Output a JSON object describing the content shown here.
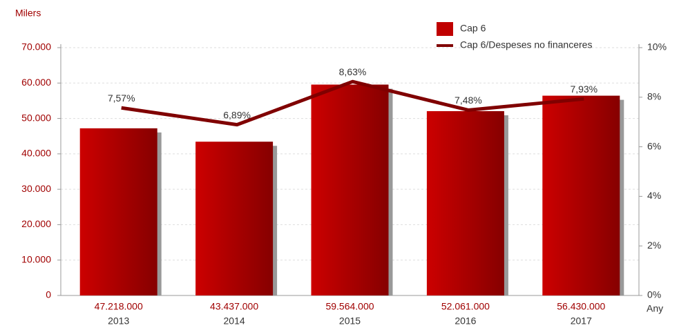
{
  "chart_data": {
    "type": "bar+line",
    "y_axis_label": "Milers",
    "x_axis_label": "Any",
    "categories": [
      "2013",
      "2014",
      "2015",
      "2016",
      "2017"
    ],
    "series": [
      {
        "name": "Cap 6",
        "type": "bar",
        "color": "#c00000",
        "values": [
          47218,
          43437,
          59564,
          52061,
          56430
        ],
        "value_labels": [
          "47.218.000",
          "43.437.000",
          "59.564.000",
          "52.061.000",
          "56.430.000"
        ]
      },
      {
        "name": "Cap 6/Despeses no financeres",
        "type": "line",
        "axis": "y2",
        "color": "#800000",
        "values": [
          7.57,
          6.89,
          8.63,
          7.48,
          7.93
        ],
        "value_labels": [
          "7,57%",
          "6,89%",
          "8,63%",
          "7,48%",
          "7,93%"
        ]
      }
    ],
    "ylim": [
      0,
      70000
    ],
    "yticks": [
      0,
      {
        "value": 10000,
        "label": "10.000"
      },
      {
        "value": 20000,
        "label": "20.000"
      },
      {
        "value": 30000,
        "label": "30.000"
      },
      {
        "value": 40000,
        "label": "40.000"
      },
      {
        "value": 50000,
        "label": "50.000"
      },
      {
        "value": 60000,
        "label": "60.000"
      },
      {
        "value": 70000,
        "label": "70.000"
      }
    ],
    "y2lim": [
      0,
      10
    ],
    "y2ticks": [
      {
        "value": 0,
        "label": "0%"
      },
      {
        "value": 2,
        "label": "2%"
      },
      {
        "value": 4,
        "label": "4%"
      },
      {
        "value": 6,
        "label": "6%"
      },
      {
        "value": 8,
        "label": "8%"
      },
      {
        "value": 10,
        "label": "10%"
      }
    ],
    "grid": true,
    "legend": "top-right"
  }
}
